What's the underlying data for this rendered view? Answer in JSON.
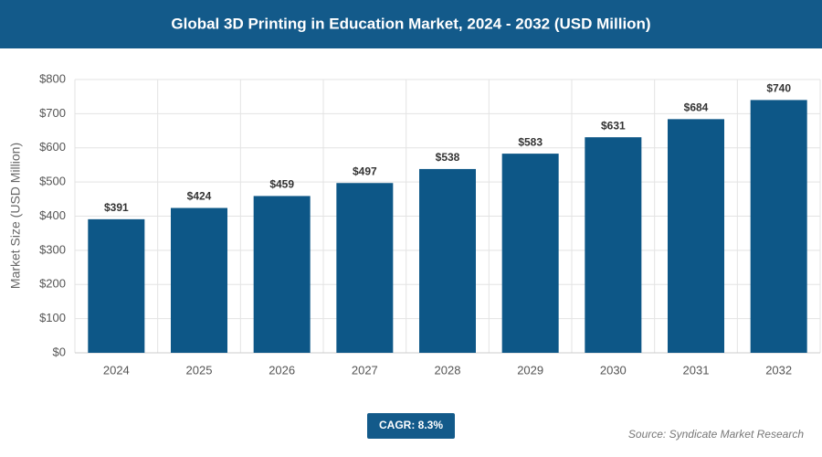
{
  "chart_data": {
    "type": "bar",
    "title": "Global 3D Printing in Education Market, 2024 - 2032 (USD Million)",
    "y_label": "Market Size (USD Million)",
    "categories": [
      "2024",
      "2025",
      "2026",
      "2027",
      "2028",
      "2029",
      "2030",
      "2031",
      "2032"
    ],
    "values": [
      391,
      424,
      459,
      497,
      538,
      583,
      631,
      684,
      740
    ],
    "value_labels": [
      "$391",
      "$424",
      "$459",
      "$497",
      "$538",
      "$583",
      "$631",
      "$684",
      "$740"
    ],
    "color": "#0d5787",
    "ylim": [
      0,
      800
    ],
    "yticks": [
      {
        "value": 0,
        "label": "$0"
      },
      {
        "value": 100,
        "label": "$100"
      },
      {
        "value": 200,
        "label": "$200"
      },
      {
        "value": 300,
        "label": "$300"
      },
      {
        "value": 400,
        "label": "$400"
      },
      {
        "value": 500,
        "label": "$500"
      },
      {
        "value": 600,
        "label": "$600"
      },
      {
        "value": 700,
        "label": "$700"
      },
      {
        "value": 800,
        "label": "$800"
      }
    ],
    "grid": true,
    "annotations": {
      "cagr": "CAGR: 8.3%",
      "source": "Source: Syndicate Market Research"
    }
  }
}
